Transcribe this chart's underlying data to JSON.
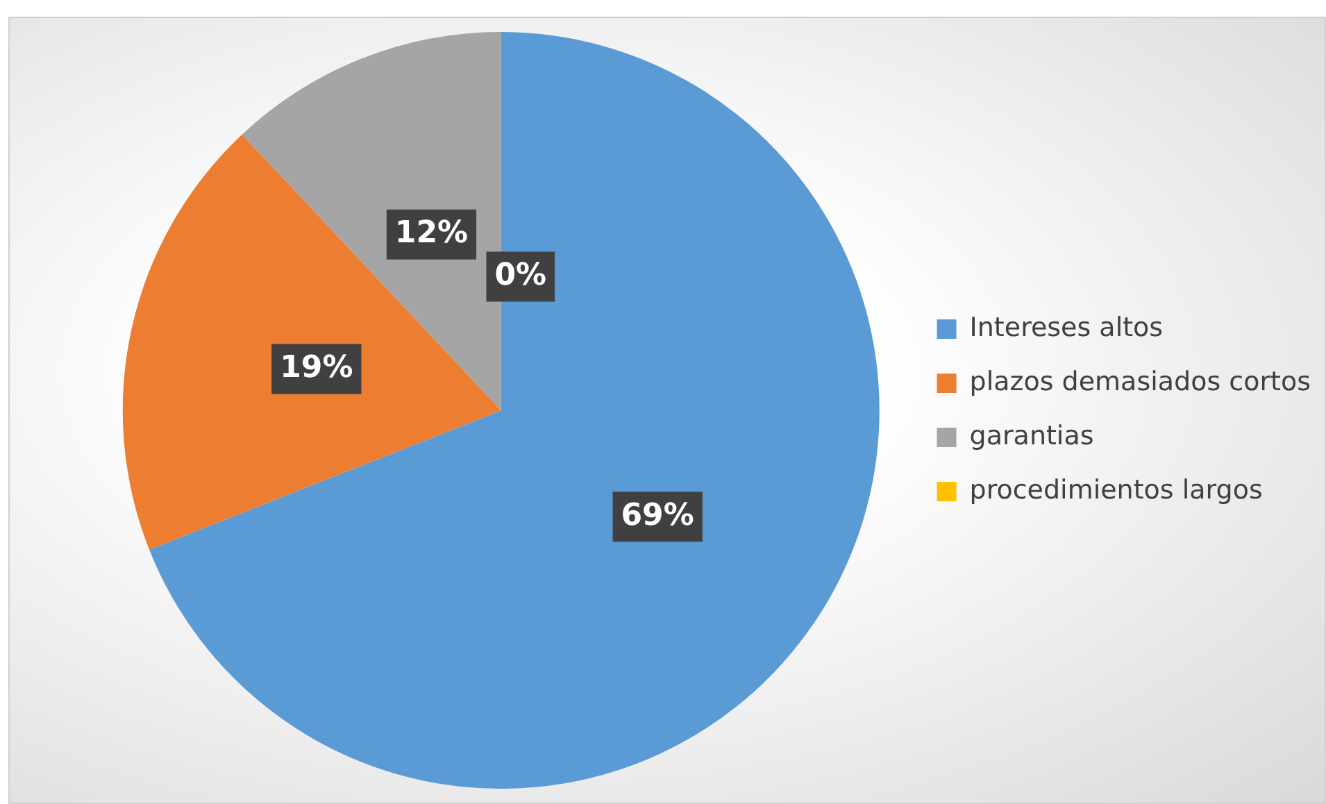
{
  "chart_data": {
    "type": "pie",
    "categories": [
      "Intereses altos",
      "plazos demasiados cortos",
      "garantias",
      "procedimientos largos"
    ],
    "values": [
      69,
      19,
      12,
      0
    ],
    "colors": [
      "#5b9bd5",
      "#ed7d31",
      "#a5a5a5",
      "#ffc000"
    ],
    "value_labels": [
      "69%",
      "19%",
      "12%",
      "0%"
    ],
    "legend": "right"
  }
}
